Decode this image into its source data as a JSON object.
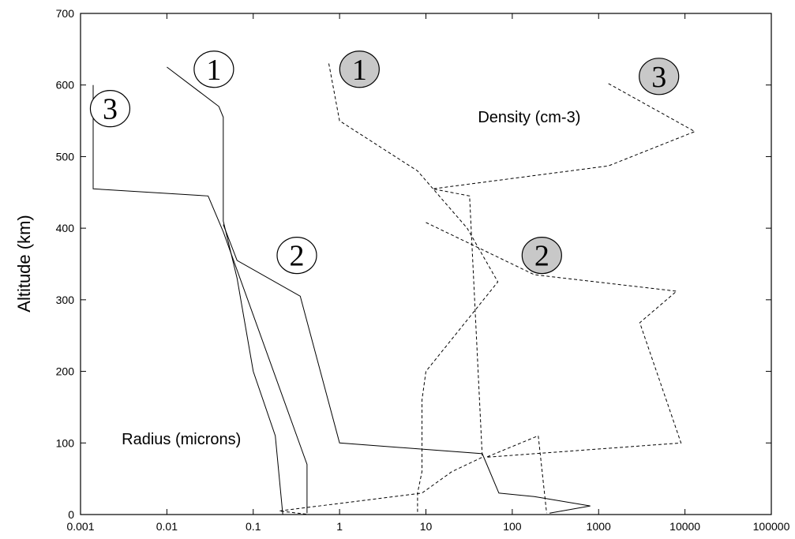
{
  "chart_data": {
    "type": "line",
    "xscale": "log",
    "xlim": [
      0.001,
      100000
    ],
    "ylim": [
      0,
      700
    ],
    "x_ticks": [
      {
        "value": 0.001,
        "label": "0.001"
      },
      {
        "value": 0.01,
        "label": "0.01"
      },
      {
        "value": 0.1,
        "label": "0.1"
      },
      {
        "value": 1,
        "label": "1"
      },
      {
        "value": 10,
        "label": "10"
      },
      {
        "value": 100,
        "label": "100"
      },
      {
        "value": 1000,
        "label": "1000"
      },
      {
        "value": 10000,
        "label": "10000"
      },
      {
        "value": 100000,
        "label": "100000"
      }
    ],
    "y_ticks": [
      {
        "value": 0,
        "label": "0"
      },
      {
        "value": 100,
        "label": "100"
      },
      {
        "value": 200,
        "label": "200"
      },
      {
        "value": 300,
        "label": "300"
      },
      {
        "value": 400,
        "label": "400"
      },
      {
        "value": 500,
        "label": "500"
      },
      {
        "value": 600,
        "label": "600"
      },
      {
        "value": 700,
        "label": "700"
      }
    ],
    "ylabel": "Altitude (km)",
    "annotations": [
      {
        "text": "Density (cm-3)",
        "x": 40,
        "y": 548
      },
      {
        "text": "Radius (microns)",
        "x": 0.003,
        "y": 98
      }
    ],
    "markers": [
      {
        "label": "1",
        "x": 0.035,
        "y": 622,
        "filled": false
      },
      {
        "label": "2",
        "x": 0.32,
        "y": 362,
        "filled": false
      },
      {
        "label": "3",
        "x": 0.0022,
        "y": 567,
        "filled": false
      },
      {
        "label": "1",
        "x": 1.7,
        "y": 622,
        "filled": true,
        "fill": "#c8c8c8"
      },
      {
        "label": "2",
        "x": 220,
        "y": 362,
        "filled": true,
        "fill": "#c8c8c8"
      },
      {
        "label": "3",
        "x": 5000,
        "y": 612,
        "filled": true,
        "fill": "#c8c8c8"
      }
    ],
    "series": [
      {
        "type": "radius",
        "style": "solid",
        "points": [
          [
            0.01,
            625
          ],
          [
            0.04,
            570
          ],
          [
            0.045,
            555
          ],
          [
            0.045,
            410
          ],
          [
            0.065,
            330
          ],
          [
            0.1,
            200
          ],
          [
            0.18,
            110
          ],
          [
            0.22,
            0
          ]
        ]
      },
      {
        "type": "radius",
        "style": "solid",
        "points": [
          [
            0.045,
            405
          ],
          [
            0.065,
            355
          ],
          [
            0.35,
            305
          ],
          [
            1.0,
            100
          ],
          [
            45,
            85
          ],
          [
            70,
            30
          ],
          [
            180,
            25
          ],
          [
            800,
            12
          ],
          [
            270,
            2
          ]
        ]
      },
      {
        "type": "radius",
        "style": "solid",
        "points": [
          [
            0.0014,
            600
          ],
          [
            0.0014,
            455
          ],
          [
            0.03,
            445
          ],
          [
            0.045,
            395
          ],
          [
            0.42,
            70
          ],
          [
            0.42,
            2
          ]
        ]
      },
      {
        "type": "density",
        "style": "dashed",
        "points": [
          [
            0.75,
            630
          ],
          [
            1.0,
            550
          ],
          [
            8.0,
            480
          ],
          [
            30,
            400
          ],
          [
            68,
            325
          ],
          [
            10,
            200
          ],
          [
            9,
            160
          ],
          [
            9,
            60
          ],
          [
            8,
            30
          ],
          [
            8,
            2
          ]
        ]
      },
      {
        "type": "density",
        "style": "dashed",
        "points": [
          [
            10,
            408
          ],
          [
            180,
            335
          ],
          [
            8000,
            312
          ],
          [
            3000,
            268
          ],
          [
            9000,
            100
          ],
          [
            50,
            80
          ],
          [
            200,
            110
          ],
          [
            250,
            2
          ]
        ]
      },
      {
        "type": "density",
        "style": "dashed",
        "points": [
          [
            1300,
            602
          ],
          [
            13000,
            535
          ],
          [
            1300,
            487
          ],
          [
            12,
            455
          ],
          [
            32,
            445
          ],
          [
            45,
            80
          ],
          [
            20,
            60
          ],
          [
            9,
            30
          ],
          [
            0.2,
            5
          ],
          [
            0.45,
            0
          ]
        ]
      }
    ]
  }
}
